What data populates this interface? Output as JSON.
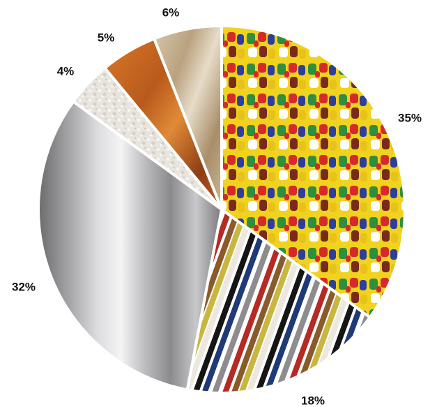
{
  "chart_data": {
    "type": "pie",
    "title": "",
    "labels": [
      "",
      "",
      "",
      "",
      "",
      ""
    ],
    "values": [
      35,
      18,
      32,
      4,
      5,
      6
    ],
    "value_labels": [
      "35%",
      "18%",
      "32%",
      "4%",
      "5%",
      "6%"
    ],
    "textures": [
      "colorful-plastic-pellets",
      "colored-electrical-wires",
      "brushed-stainless-steel",
      "white-stone-granules",
      "polished-wood",
      "beige-marble"
    ],
    "colors": [
      "#e7c21b",
      "#b73028",
      "#b4b4b6",
      "#e6e2dc",
      "#c4651f",
      "#c8b497"
    ],
    "start_angle_deg": 0,
    "direction": "clockwise",
    "legend": "none",
    "label_placement": "outside"
  }
}
